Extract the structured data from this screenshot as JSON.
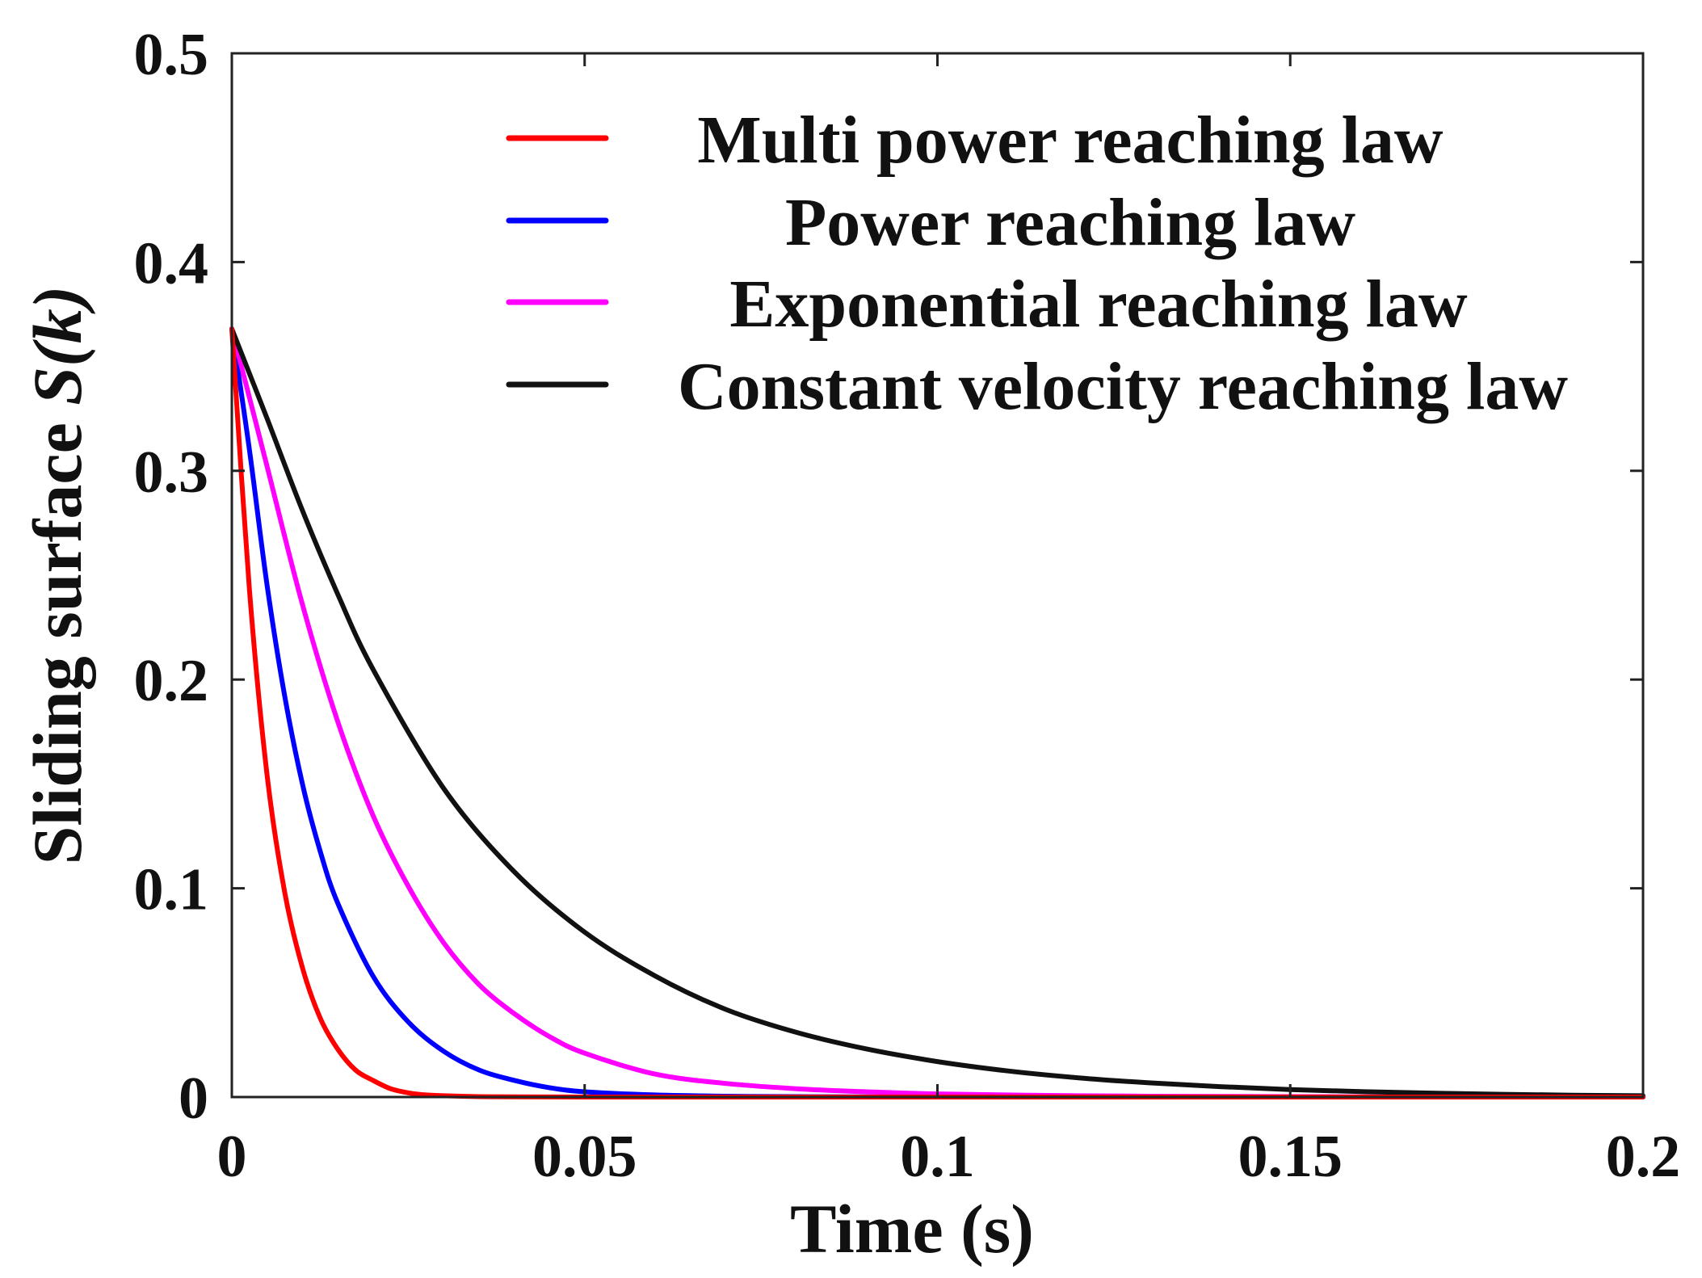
{
  "chart_data": {
    "type": "line",
    "title": "",
    "xlabel": "Time (s)",
    "ylabel_main": "Sliding surface ",
    "ylabel_symbol": "S(k)",
    "xlim": [
      0,
      0.2
    ],
    "ylim": [
      0,
      0.5
    ],
    "xticks": [
      0,
      0.05,
      0.1,
      0.15,
      0.2
    ],
    "xtick_labels": [
      "0",
      "0.05",
      "0.1",
      "0.15",
      "0.2"
    ],
    "yticks": [
      0,
      0.1,
      0.2,
      0.3,
      0.4,
      0.5
    ],
    "ytick_labels": [
      "0",
      "0.1",
      "0.2",
      "0.3",
      "0.4",
      "0.5"
    ],
    "grid": false,
    "legend_position": "top-right",
    "series": [
      {
        "name": "Multi power reaching law",
        "color": "#ff0000",
        "x": [
          0,
          0.0025,
          0.005,
          0.0075,
          0.01,
          0.0125,
          0.015,
          0.0175,
          0.02,
          0.0225,
          0.025,
          0.0275,
          0.03,
          0.035,
          0.04,
          0.05,
          0.07,
          0.1,
          0.15,
          0.2
        ],
        "y": [
          0.368,
          0.243,
          0.154,
          0.098,
          0.062,
          0.038,
          0.023,
          0.013,
          0.008,
          0.004,
          0.002,
          0.001,
          0.0006,
          0.0002,
          0.0001,
          0,
          0,
          0,
          0,
          0
        ]
      },
      {
        "name": "Power reaching law",
        "color": "#0000ff",
        "x": [
          0,
          0.0025,
          0.005,
          0.0075,
          0.01,
          0.0125,
          0.015,
          0.02,
          0.025,
          0.03,
          0.035,
          0.04,
          0.045,
          0.05,
          0.06,
          0.07,
          0.08,
          0.1,
          0.15,
          0.2
        ],
        "y": [
          0.368,
          0.31,
          0.245,
          0.192,
          0.15,
          0.118,
          0.093,
          0.058,
          0.036,
          0.022,
          0.013,
          0.008,
          0.0045,
          0.0025,
          0.001,
          0.0004,
          0.0002,
          0,
          0,
          0
        ]
      },
      {
        "name": "Exponential reaching law",
        "color": "#ff00ff",
        "x": [
          0,
          0.005,
          0.01,
          0.015,
          0.02,
          0.025,
          0.03,
          0.035,
          0.04,
          0.045,
          0.05,
          0.06,
          0.07,
          0.08,
          0.09,
          0.1,
          0.12,
          0.14,
          0.16,
          0.18,
          0.2
        ],
        "y": [
          0.368,
          0.302,
          0.236,
          0.18,
          0.135,
          0.101,
          0.074,
          0.054,
          0.04,
          0.029,
          0.021,
          0.011,
          0.0065,
          0.004,
          0.0025,
          0.0015,
          0.0006,
          0.0003,
          0.0001,
          0,
          0
        ]
      },
      {
        "name": "Constant velocity reaching law",
        "color": "#111111",
        "x": [
          0,
          0.005,
          0.01,
          0.015,
          0.02,
          0.03,
          0.04,
          0.05,
          0.06,
          0.07,
          0.08,
          0.09,
          0.1,
          0.11,
          0.12,
          0.13,
          0.14,
          0.15,
          0.16,
          0.17,
          0.18,
          0.19,
          0.2
        ],
        "y": [
          0.368,
          0.325,
          0.281,
          0.241,
          0.205,
          0.148,
          0.108,
          0.079,
          0.058,
          0.042,
          0.031,
          0.023,
          0.017,
          0.0125,
          0.0092,
          0.0068,
          0.005,
          0.0036,
          0.0026,
          0.0019,
          0.0013,
          0.0009,
          0.0006
        ]
      }
    ]
  }
}
